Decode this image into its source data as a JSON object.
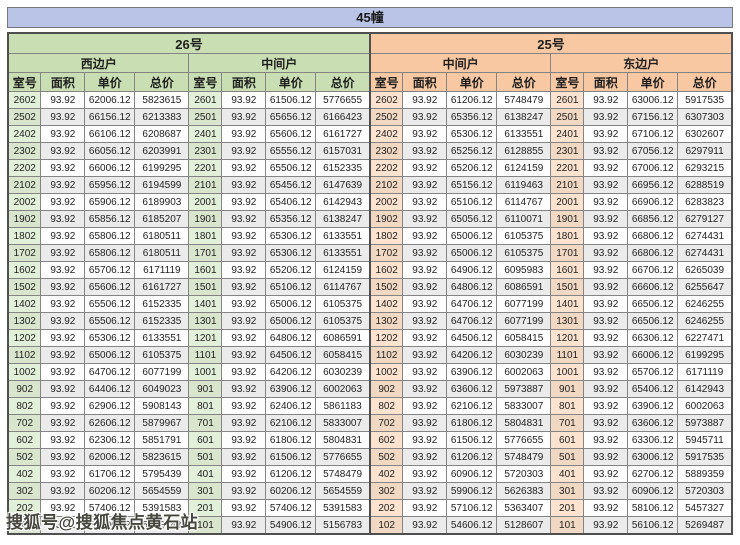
{
  "title": "45幢",
  "watermark": "搜狐号@搜狐焦点黄石站",
  "buildings": [
    {
      "label": "26号",
      "units": [
        "西边户",
        "中间户"
      ]
    },
    {
      "label": "25号",
      "units": [
        "中间户",
        "东边户"
      ]
    }
  ],
  "column_headers": [
    "室号",
    "面积",
    "单价",
    "总价"
  ],
  "colors": {
    "title_bar_blue": "#b9c4e6",
    "building26_green": "#c9dfb3",
    "building25_orange": "#f7c8a2",
    "room_cell_green": "#e2efd9",
    "room_cell_orange": "#fce3cf",
    "stripe_gray": "#ebebeb"
  },
  "rows": [
    [
      "2602",
      "93.92",
      "62006.12",
      "5823615",
      "2601",
      "93.92",
      "61506.12",
      "5776655",
      "2602",
      "93.92",
      "61206.12",
      "5748479",
      "2601",
      "93.92",
      "63006.12",
      "5917535"
    ],
    [
      "2502",
      "93.92",
      "66156.12",
      "6213383",
      "2501",
      "93.92",
      "65656.12",
      "6166423",
      "2502",
      "93.92",
      "65356.12",
      "6138247",
      "2501",
      "93.92",
      "67156.12",
      "6307303"
    ],
    [
      "2402",
      "93.92",
      "66106.12",
      "6208687",
      "2401",
      "93.92",
      "65606.12",
      "6161727",
      "2402",
      "93.92",
      "65306.12",
      "6133551",
      "2401",
      "93.92",
      "67106.12",
      "6302607"
    ],
    [
      "2302",
      "93.92",
      "66056.12",
      "6203991",
      "2301",
      "93.92",
      "65556.12",
      "6157031",
      "2302",
      "93.92",
      "65256.12",
      "6128855",
      "2301",
      "93.92",
      "67056.12",
      "6297911"
    ],
    [
      "2202",
      "93.92",
      "66006.12",
      "6199295",
      "2201",
      "93.92",
      "65506.12",
      "6152335",
      "2202",
      "93.92",
      "65206.12",
      "6124159",
      "2201",
      "93.92",
      "67006.12",
      "6293215"
    ],
    [
      "2102",
      "93.92",
      "65956.12",
      "6194599",
      "2101",
      "93.92",
      "65456.12",
      "6147639",
      "2102",
      "93.92",
      "65156.12",
      "6119463",
      "2101",
      "93.92",
      "66956.12",
      "6288519"
    ],
    [
      "2002",
      "93.92",
      "65906.12",
      "6189903",
      "2001",
      "93.92",
      "65406.12",
      "6142943",
      "2002",
      "93.92",
      "65106.12",
      "6114767",
      "2001",
      "93.92",
      "66906.12",
      "6283823"
    ],
    [
      "1902",
      "93.92",
      "65856.12",
      "6185207",
      "1901",
      "93.92",
      "65356.12",
      "6138247",
      "1902",
      "93.92",
      "65056.12",
      "6110071",
      "1901",
      "93.92",
      "66856.12",
      "6279127"
    ],
    [
      "1802",
      "93.92",
      "65806.12",
      "6180511",
      "1801",
      "93.92",
      "65306.12",
      "6133551",
      "1802",
      "93.92",
      "65006.12",
      "6105375",
      "1801",
      "93.92",
      "66806.12",
      "6274431"
    ],
    [
      "1702",
      "93.92",
      "65806.12",
      "6180511",
      "1701",
      "93.92",
      "65306.12",
      "6133551",
      "1702",
      "93.92",
      "65006.12",
      "6105375",
      "1701",
      "93.92",
      "66806.12",
      "6274431"
    ],
    [
      "1602",
      "93.92",
      "65706.12",
      "6171119",
      "1601",
      "93.92",
      "65206.12",
      "6124159",
      "1602",
      "93.92",
      "64906.12",
      "6095983",
      "1601",
      "93.92",
      "66706.12",
      "6265039"
    ],
    [
      "1502",
      "93.92",
      "65606.12",
      "6161727",
      "1501",
      "93.92",
      "65106.12",
      "6114767",
      "1502",
      "93.92",
      "64806.12",
      "6086591",
      "1501",
      "93.92",
      "66606.12",
      "6255647"
    ],
    [
      "1402",
      "93.92",
      "65506.12",
      "6152335",
      "1401",
      "93.92",
      "65006.12",
      "6105375",
      "1402",
      "93.92",
      "64706.12",
      "6077199",
      "1401",
      "93.92",
      "66506.12",
      "6246255"
    ],
    [
      "1302",
      "93.92",
      "65506.12",
      "6152335",
      "1301",
      "93.92",
      "65006.12",
      "6105375",
      "1302",
      "93.92",
      "64706.12",
      "6077199",
      "1301",
      "93.92",
      "66506.12",
      "6246255"
    ],
    [
      "1202",
      "93.92",
      "65306.12",
      "6133551",
      "1201",
      "93.92",
      "64806.12",
      "6086591",
      "1202",
      "93.92",
      "64506.12",
      "6058415",
      "1201",
      "93.92",
      "66306.12",
      "6227471"
    ],
    [
      "1102",
      "93.92",
      "65006.12",
      "6105375",
      "1101",
      "93.92",
      "64506.12",
      "6058415",
      "1102",
      "93.92",
      "64206.12",
      "6030239",
      "1101",
      "93.92",
      "66006.12",
      "6199295"
    ],
    [
      "1002",
      "93.92",
      "64706.12",
      "6077199",
      "1001",
      "93.92",
      "64206.12",
      "6030239",
      "1002",
      "93.92",
      "63906.12",
      "6002063",
      "1001",
      "93.92",
      "65706.12",
      "6171119"
    ],
    [
      "902",
      "93.92",
      "64406.12",
      "6049023",
      "901",
      "93.92",
      "63906.12",
      "6002063",
      "902",
      "93.92",
      "63606.12",
      "5973887",
      "901",
      "93.92",
      "65406.12",
      "6142943"
    ],
    [
      "802",
      "93.92",
      "62906.12",
      "5908143",
      "801",
      "93.92",
      "62406.12",
      "5861183",
      "802",
      "93.92",
      "62106.12",
      "5833007",
      "801",
      "93.92",
      "63906.12",
      "6002063"
    ],
    [
      "702",
      "93.92",
      "62606.12",
      "5879967",
      "701",
      "93.92",
      "62106.12",
      "5833007",
      "702",
      "93.92",
      "61806.12",
      "5804831",
      "701",
      "93.92",
      "63606.12",
      "5973887"
    ],
    [
      "602",
      "93.92",
      "62306.12",
      "5851791",
      "601",
      "93.92",
      "61806.12",
      "5804831",
      "602",
      "93.92",
      "61506.12",
      "5776655",
      "601",
      "93.92",
      "63306.12",
      "5945711"
    ],
    [
      "502",
      "93.92",
      "62006.12",
      "5823615",
      "501",
      "93.92",
      "61506.12",
      "5776655",
      "502",
      "93.92",
      "61206.12",
      "5748479",
      "501",
      "93.92",
      "63006.12",
      "5917535"
    ],
    [
      "402",
      "93.92",
      "61706.12",
      "5795439",
      "401",
      "93.92",
      "61206.12",
      "5748479",
      "402",
      "93.92",
      "60906.12",
      "5720303",
      "401",
      "93.92",
      "62706.12",
      "5889359"
    ],
    [
      "302",
      "93.92",
      "60206.12",
      "5654559",
      "301",
      "93.92",
      "60206.12",
      "5654559",
      "302",
      "93.92",
      "59906.12",
      "5626383",
      "301",
      "93.92",
      "60906.12",
      "5720303"
    ],
    [
      "202",
      "93.92",
      "57406.12",
      "5391583",
      "201",
      "93.92",
      "57406.12",
      "5391583",
      "202",
      "93.92",
      "57106.12",
      "5363407",
      "201",
      "93.92",
      "58106.12",
      "5457327"
    ],
    [
      "102",
      "93.92",
      "55406.12",
      "5203743",
      "101",
      "93.92",
      "54906.12",
      "5156783",
      "102",
      "93.92",
      "54606.12",
      "5128607",
      "101",
      "93.92",
      "56106.12",
      "5269487"
    ]
  ]
}
